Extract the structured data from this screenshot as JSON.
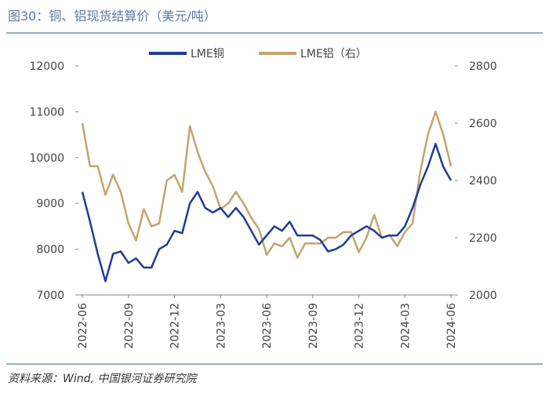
{
  "chart_data": {
    "type": "line",
    "title": "图30：铜、铝现货结算价（美元/吨）",
    "source": "资料来源：Wind, 中国银河证券研究院",
    "categories": [
      "2022-06",
      null,
      null,
      null,
      null,
      null,
      "2022-09",
      null,
      null,
      null,
      null,
      null,
      "2022-12",
      null,
      null,
      null,
      null,
      null,
      "2023-03",
      null,
      null,
      null,
      null,
      null,
      "2023-06",
      null,
      null,
      null,
      null,
      null,
      "2023-09",
      null,
      null,
      null,
      null,
      null,
      "2023-12",
      null,
      null,
      null,
      null,
      null,
      "2024-03",
      null,
      null,
      null,
      null,
      null,
      "2024-06"
    ],
    "series": [
      {
        "name": "LME铜",
        "color": "#1f3c99",
        "axis": "y",
        "values": [
          9250,
          8600,
          7900,
          7300,
          7900,
          7950,
          7700,
          7800,
          7600,
          7600,
          8000,
          8100,
          8400,
          8350,
          9000,
          9250,
          8900,
          8800,
          8900,
          8700,
          8900,
          8700,
          8400,
          8100,
          8300,
          8500,
          8400,
          8600,
          8300,
          8300,
          8300,
          8200,
          7950,
          8000,
          8100,
          8300,
          8400,
          8500,
          8400,
          8250,
          8300,
          8300,
          8500,
          8900,
          9400,
          9800,
          10300,
          9800,
          9500
        ]
      },
      {
        "name": "LME铝（右）",
        "color": "#c4a46c",
        "axis": "y2",
        "values": [
          2600,
          2450,
          2450,
          2350,
          2420,
          2360,
          2250,
          2190,
          2300,
          2240,
          2250,
          2400,
          2420,
          2360,
          2590,
          2500,
          2430,
          2380,
          2300,
          2320,
          2360,
          2320,
          2270,
          2230,
          2140,
          2180,
          2170,
          2200,
          2130,
          2180,
          2180,
          2180,
          2200,
          2200,
          2220,
          2220,
          2150,
          2200,
          2280,
          2200,
          2210,
          2170,
          2220,
          2250,
          2430,
          2560,
          2640,
          2560,
          2450
        ]
      }
    ],
    "ylim": [
      7000,
      12000
    ],
    "yticks": [
      7000,
      8000,
      9000,
      10000,
      11000,
      12000
    ],
    "y2lim": [
      2000,
      2800
    ],
    "y2ticks": [
      2000,
      2200,
      2400,
      2600,
      2800
    ],
    "legend": "top"
  }
}
